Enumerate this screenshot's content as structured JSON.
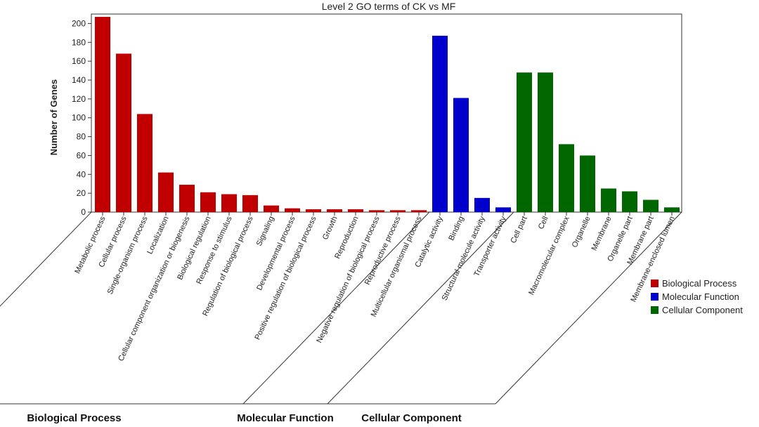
{
  "chart_data": {
    "type": "bar",
    "title": "Level 2 GO terms of CK vs MF",
    "ylabel": "Number of Genes",
    "xlabel": "",
    "ylim": [
      0,
      210
    ],
    "yticks": [
      0,
      20,
      40,
      60,
      80,
      100,
      120,
      140,
      160,
      180,
      200
    ],
    "grid": false,
    "legend_position": "right",
    "groups": [
      {
        "name": "Biological Process",
        "color": "#c00000",
        "categories": [
          "Metabolic process",
          "Cellular process",
          "Single-organism process",
          "Localization",
          "Cellular component organization or biogenesis",
          "Biological regulation",
          "Response to stimulus",
          "Regulation of biological process",
          "Signaling",
          "Developmental process",
          "Positive regulation of biological process",
          "Growth",
          "Reproduction",
          "Negative regulation of biological process",
          "Reproductive process",
          "Multicellular organismal process"
        ],
        "values": [
          207,
          168,
          104,
          42,
          29,
          21,
          19,
          18,
          7,
          4,
          3,
          3,
          3,
          2,
          2,
          2
        ]
      },
      {
        "name": "Molecular Function",
        "color": "#0000cc",
        "categories": [
          "Catalytic activity",
          "Binding",
          "Structural molecule activity",
          "Transporter activity"
        ],
        "values": [
          187,
          121,
          15,
          5
        ]
      },
      {
        "name": "Cellular Component",
        "color": "#006600",
        "categories": [
          "Cell part",
          "Cell",
          "Macromolecular complex",
          "Organelle",
          "Membrane",
          "Organelle part",
          "Membrane part",
          "Membrane-enclosed lumen"
        ],
        "values": [
          148,
          148,
          72,
          60,
          25,
          22,
          13,
          5
        ]
      }
    ]
  }
}
